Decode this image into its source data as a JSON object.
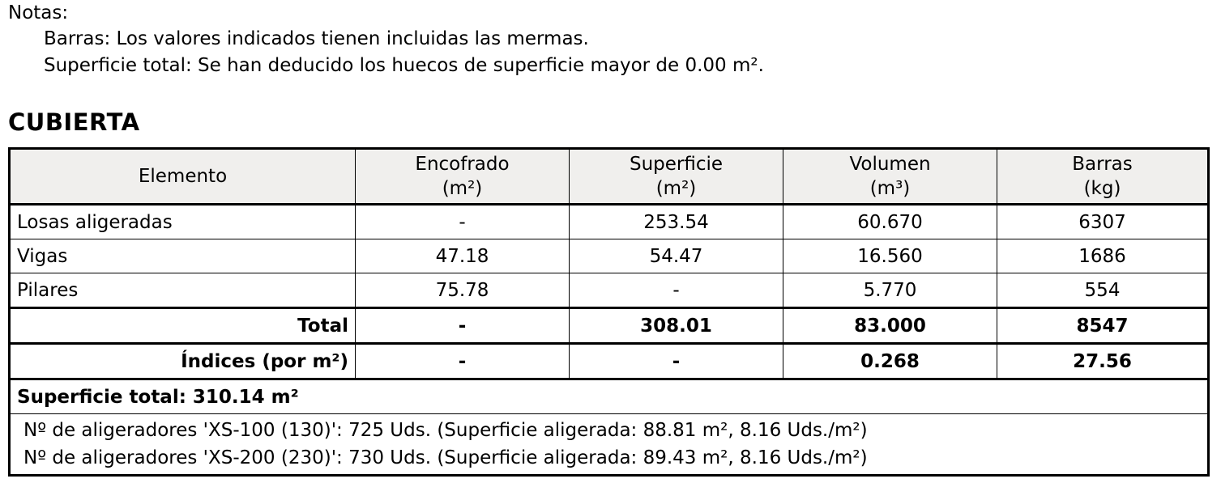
{
  "notes": {
    "title": "Notas:",
    "lines": [
      "Barras: Los valores indicados tienen incluidas las mermas.",
      "Superficie total: Se han deducido los huecos de superficie mayor de 0.00 m²."
    ]
  },
  "section_title": "CUBIERTA",
  "table": {
    "headers": [
      {
        "label": "Elemento",
        "unit": ""
      },
      {
        "label": "Encofrado",
        "unit": "(m²)"
      },
      {
        "label": "Superficie",
        "unit": "(m²)"
      },
      {
        "label": "Volumen",
        "unit": "(m³)"
      },
      {
        "label": "Barras",
        "unit": "(kg)"
      }
    ],
    "rows": [
      [
        "Losas aligeradas",
        "-",
        "253.54",
        "60.670",
        "6307"
      ],
      [
        "Vigas",
        "47.18",
        "54.47",
        "16.560",
        "1686"
      ],
      [
        "Pilares",
        "75.78",
        "-",
        "5.770",
        "554"
      ]
    ],
    "total": [
      "Total",
      "-",
      "308.01",
      "83.000",
      "8547"
    ],
    "indices": [
      "Índices (por m²)",
      "-",
      "-",
      "0.268",
      "27.56"
    ],
    "superficie_total": "Superficie total: 310.14 m²",
    "aligeradores": [
      "Nº de aligeradores 'XS-100 (130)': 725 Uds. (Superficie aligerada: 88.81 m², 8.16 Uds./m²)",
      "Nº de aligeradores 'XS-200 (230)': 730 Uds. (Superficie aligerada: 89.43 m², 8.16 Uds./m²)"
    ]
  }
}
